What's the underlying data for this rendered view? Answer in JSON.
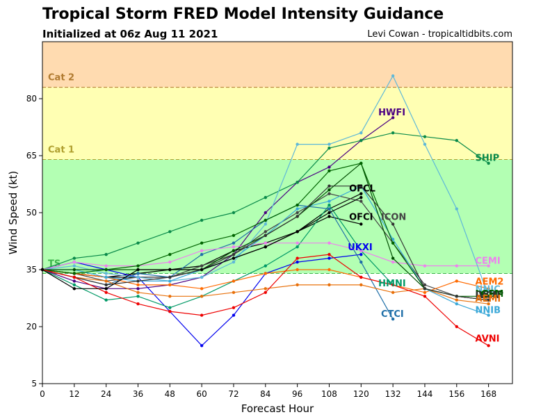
{
  "chart_data": {
    "type": "line",
    "title": "Tropical Storm FRED Model Intensity Guidance",
    "subtitle": "Initialized at 06z Aug 11 2021",
    "credit": "Levi Cowan - tropicaltidbits.com",
    "xlabel": "Forecast Hour",
    "ylabel": "Wind Speed (kt)",
    "xlim": [
      0,
      177
    ],
    "ylim": [
      5,
      95
    ],
    "xticks": [
      "0",
      "12",
      "24",
      "36",
      "48",
      "60",
      "72",
      "84",
      "96",
      "108",
      "120",
      "132",
      "144",
      "156",
      "168"
    ],
    "yticks": [
      "5",
      "20",
      "35",
      "50",
      "65",
      "80"
    ],
    "bands": [
      {
        "label": "TS",
        "from": 34,
        "to": 64,
        "color": "#b3ffb3",
        "label_color": "#3cb44b"
      },
      {
        "label": "Cat 1",
        "from": 64,
        "to": 83,
        "color": "#ffffb3",
        "label_color": "#b0a030"
      },
      {
        "label": "Cat 2",
        "from": 83,
        "to": 95,
        "color": "#ffdbb0",
        "label_color": "#b07a30"
      }
    ],
    "series": [
      {
        "name": "HWFI",
        "color": "#4b0082",
        "x": [
          0,
          12,
          24,
          36,
          48,
          60,
          72,
          84,
          96,
          108,
          120,
          132
        ],
        "y": [
          35,
          32,
          30,
          30,
          31,
          33,
          39,
          50,
          58,
          62,
          69,
          75
        ]
      },
      {
        "name": "SHIP",
        "color": "#0a8a4a",
        "x": [
          0,
          12,
          24,
          36,
          48,
          60,
          72,
          84,
          96,
          108,
          120,
          132,
          144,
          156,
          168
        ],
        "y": [
          35,
          38,
          39,
          42,
          45,
          48,
          50,
          54,
          58,
          67,
          69,
          71,
          70,
          69,
          63
        ]
      },
      {
        "name": "OFCL",
        "color": "#000000",
        "x": [
          0,
          12,
          24,
          36,
          48,
          60,
          72,
          84,
          96,
          108,
          120
        ],
        "y": [
          35,
          34,
          33,
          34,
          35,
          36,
          40,
          42,
          45,
          51,
          55
        ]
      },
      {
        "name": "OFCI",
        "color": "#000000",
        "x": [
          0,
          12,
          24,
          36,
          48,
          60,
          72,
          84,
          96,
          108,
          120
        ],
        "y": [
          35,
          34,
          33,
          33,
          33,
          35,
          38,
          41,
          45,
          49,
          47
        ]
      },
      {
        "name": "ICON",
        "color": "#444444",
        "x": [
          0,
          12,
          24,
          36,
          48,
          60,
          72,
          84,
          96,
          108,
          120,
          132,
          144,
          156,
          168
        ],
        "y": [
          35,
          34,
          32,
          33,
          33,
          36,
          39,
          45,
          50,
          55,
          53,
          42,
          31,
          28,
          27
        ]
      },
      {
        "name": "UKXI",
        "color": "#0000ee",
        "x": [
          0,
          12,
          24,
          36,
          48,
          60,
          72,
          84,
          96,
          108,
          120
        ],
        "y": [
          35,
          37,
          35,
          33,
          24,
          15,
          23,
          34,
          37,
          38,
          39
        ]
      },
      {
        "name": "HMNI",
        "color": "#009966",
        "x": [
          0,
          12,
          24,
          36,
          48,
          60,
          72,
          84,
          96,
          108,
          120,
          132
        ],
        "y": [
          35,
          31,
          27,
          28,
          25,
          28,
          32,
          36,
          41,
          52,
          40,
          31
        ]
      },
      {
        "name": "CTCI",
        "color": "#1f6fa8",
        "x": [
          0,
          12,
          24,
          36,
          48,
          60,
          72,
          84,
          96,
          108,
          120,
          132
        ],
        "y": [
          35,
          33,
          31,
          34,
          33,
          39,
          42,
          48,
          52,
          51,
          37,
          22
        ]
      },
      {
        "name": "CEMI",
        "color": "#ee82ee",
        "x": [
          0,
          12,
          24,
          36,
          48,
          60,
          72,
          84,
          96,
          108,
          120,
          132,
          144,
          156,
          168
        ],
        "y": [
          35,
          37,
          36,
          36,
          37,
          40,
          41,
          42,
          42,
          42,
          40,
          37,
          36,
          36,
          36
        ]
      },
      {
        "name": "AEM2",
        "color": "#ff6a00",
        "x": [
          0,
          12,
          24,
          36,
          48,
          60,
          72,
          84,
          96,
          108,
          120,
          132,
          144,
          156,
          168
        ],
        "y": [
          35,
          34,
          33,
          31,
          31,
          30,
          32,
          34,
          35,
          35,
          33,
          31,
          29,
          32,
          30
        ]
      },
      {
        "name": "AEMI",
        "color": "#e8700a",
        "x": [
          0,
          12,
          24,
          36,
          48,
          60,
          72,
          84,
          96,
          108,
          120,
          132,
          144,
          156,
          168
        ],
        "y": [
          35,
          33,
          32,
          29,
          28,
          28,
          29,
          30,
          31,
          31,
          31,
          29,
          30,
          27,
          26
        ]
      },
      {
        "name": "NNIC",
        "color": "#5fb8d8",
        "x": [
          0,
          12,
          24,
          36,
          48,
          60,
          72,
          84,
          96,
          108,
          120,
          132,
          144,
          156,
          168
        ],
        "y": [
          35,
          36,
          34,
          33,
          32,
          33,
          37,
          47,
          68,
          68,
          71,
          86,
          68,
          51,
          28
        ]
      },
      {
        "name": "NNIB",
        "color": "#3aa8d8",
        "x": [
          0,
          12,
          24,
          36,
          48,
          60,
          72,
          84,
          96,
          108,
          120,
          132,
          144,
          156,
          168
        ],
        "y": [
          35,
          35,
          33,
          32,
          32,
          35,
          38,
          44,
          51,
          53,
          57,
          43,
          30,
          26,
          23
        ]
      },
      {
        "name": "DSHP",
        "color": "#004d00",
        "x": [
          0,
          12,
          24,
          36,
          48,
          60,
          72,
          84,
          96,
          108,
          120,
          132,
          144,
          156,
          168
        ],
        "y": [
          35,
          35,
          35,
          35,
          35,
          35,
          40,
          44,
          49,
          56,
          63,
          38,
          30,
          28,
          27
        ]
      },
      {
        "name": "LGEM",
        "color": "#006400",
        "x": [
          0,
          12,
          24,
          36,
          48,
          60,
          72,
          84,
          96,
          108,
          120,
          132,
          144,
          156,
          168
        ],
        "y": [
          35,
          34,
          35,
          36,
          39,
          42,
          44,
          48,
          52,
          61,
          63,
          42,
          30,
          28,
          28
        ]
      },
      {
        "name": "IVCN",
        "color": "#333333",
        "x": [
          0,
          12,
          24,
          36,
          48,
          60,
          72,
          84,
          96,
          108,
          120,
          132,
          144,
          156,
          168
        ],
        "y": [
          35,
          33,
          31,
          32,
          33,
          35,
          39,
          44,
          49,
          57,
          57,
          47,
          30,
          28,
          27
        ]
      },
      {
        "name": "AVNI",
        "color": "#ee0000",
        "x": [
          0,
          12,
          24,
          36,
          48,
          60,
          72,
          84,
          96,
          108,
          120,
          132,
          144,
          156,
          168
        ],
        "y": [
          35,
          33,
          29,
          26,
          24,
          23,
          25,
          29,
          38,
          39,
          33,
          31,
          28,
          20,
          15
        ]
      },
      {
        "name": "",
        "color": "#000000",
        "x": [
          0,
          12,
          24,
          36,
          48,
          60,
          72,
          84,
          96,
          108,
          120
        ],
        "y": [
          35,
          30,
          30,
          35,
          35,
          35,
          38,
          41,
          45,
          50,
          54
        ]
      }
    ],
    "labels": [
      {
        "text": "HWFI",
        "color": "#4b0082",
        "x": 126.5,
        "y": 76.5,
        "anchor": "start"
      },
      {
        "text": "SHIP",
        "color": "#0a8a4a",
        "x": 163,
        "y": 64.5,
        "anchor": "start"
      },
      {
        "text": "OFCL",
        "color": "#000000",
        "x": 115.5,
        "y": 56.5,
        "anchor": "start"
      },
      {
        "text": "OFCI",
        "color": "#000000",
        "x": 115.5,
        "y": 49,
        "anchor": "start"
      },
      {
        "text": "ICON",
        "color": "#444444",
        "x": 127.5,
        "y": 49,
        "anchor": "start"
      },
      {
        "text": "UKXI",
        "color": "#0000ee",
        "x": 115,
        "y": 41,
        "anchor": "start"
      },
      {
        "text": "HMNI",
        "color": "#009966",
        "x": 126.5,
        "y": 31.5,
        "anchor": "start"
      },
      {
        "text": "CTCI",
        "color": "#1f6fa8",
        "x": 127.5,
        "y": 23.5,
        "anchor": "start"
      },
      {
        "text": "CEMI",
        "color": "#ee82ee",
        "x": 163,
        "y": 37.5,
        "anchor": "start"
      },
      {
        "text": "AEM2",
        "color": "#ff6a00",
        "x": 163,
        "y": 32,
        "anchor": "start"
      },
      {
        "text": "NNIC",
        "color": "#5fb8d8",
        "x": 163,
        "y": 30,
        "anchor": "start"
      },
      {
        "text": "LGEM",
        "color": "#006400",
        "x": 163,
        "y": 28.8,
        "anchor": "start"
      },
      {
        "text": "DSHP",
        "color": "#004d00",
        "x": 163,
        "y": 28.6,
        "anchor": "start"
      },
      {
        "text": "IVCN",
        "color": "#333333",
        "x": 163,
        "y": 28.4,
        "anchor": "start"
      },
      {
        "text": "AEMI",
        "color": "#e8700a",
        "x": 163,
        "y": 27.5,
        "anchor": "start"
      },
      {
        "text": "NNIB",
        "color": "#3aa8d8",
        "x": 163,
        "y": 24.5,
        "anchor": "start"
      },
      {
        "text": "AVNI",
        "color": "#ee0000",
        "x": 163,
        "y": 17,
        "anchor": "start"
      }
    ]
  }
}
